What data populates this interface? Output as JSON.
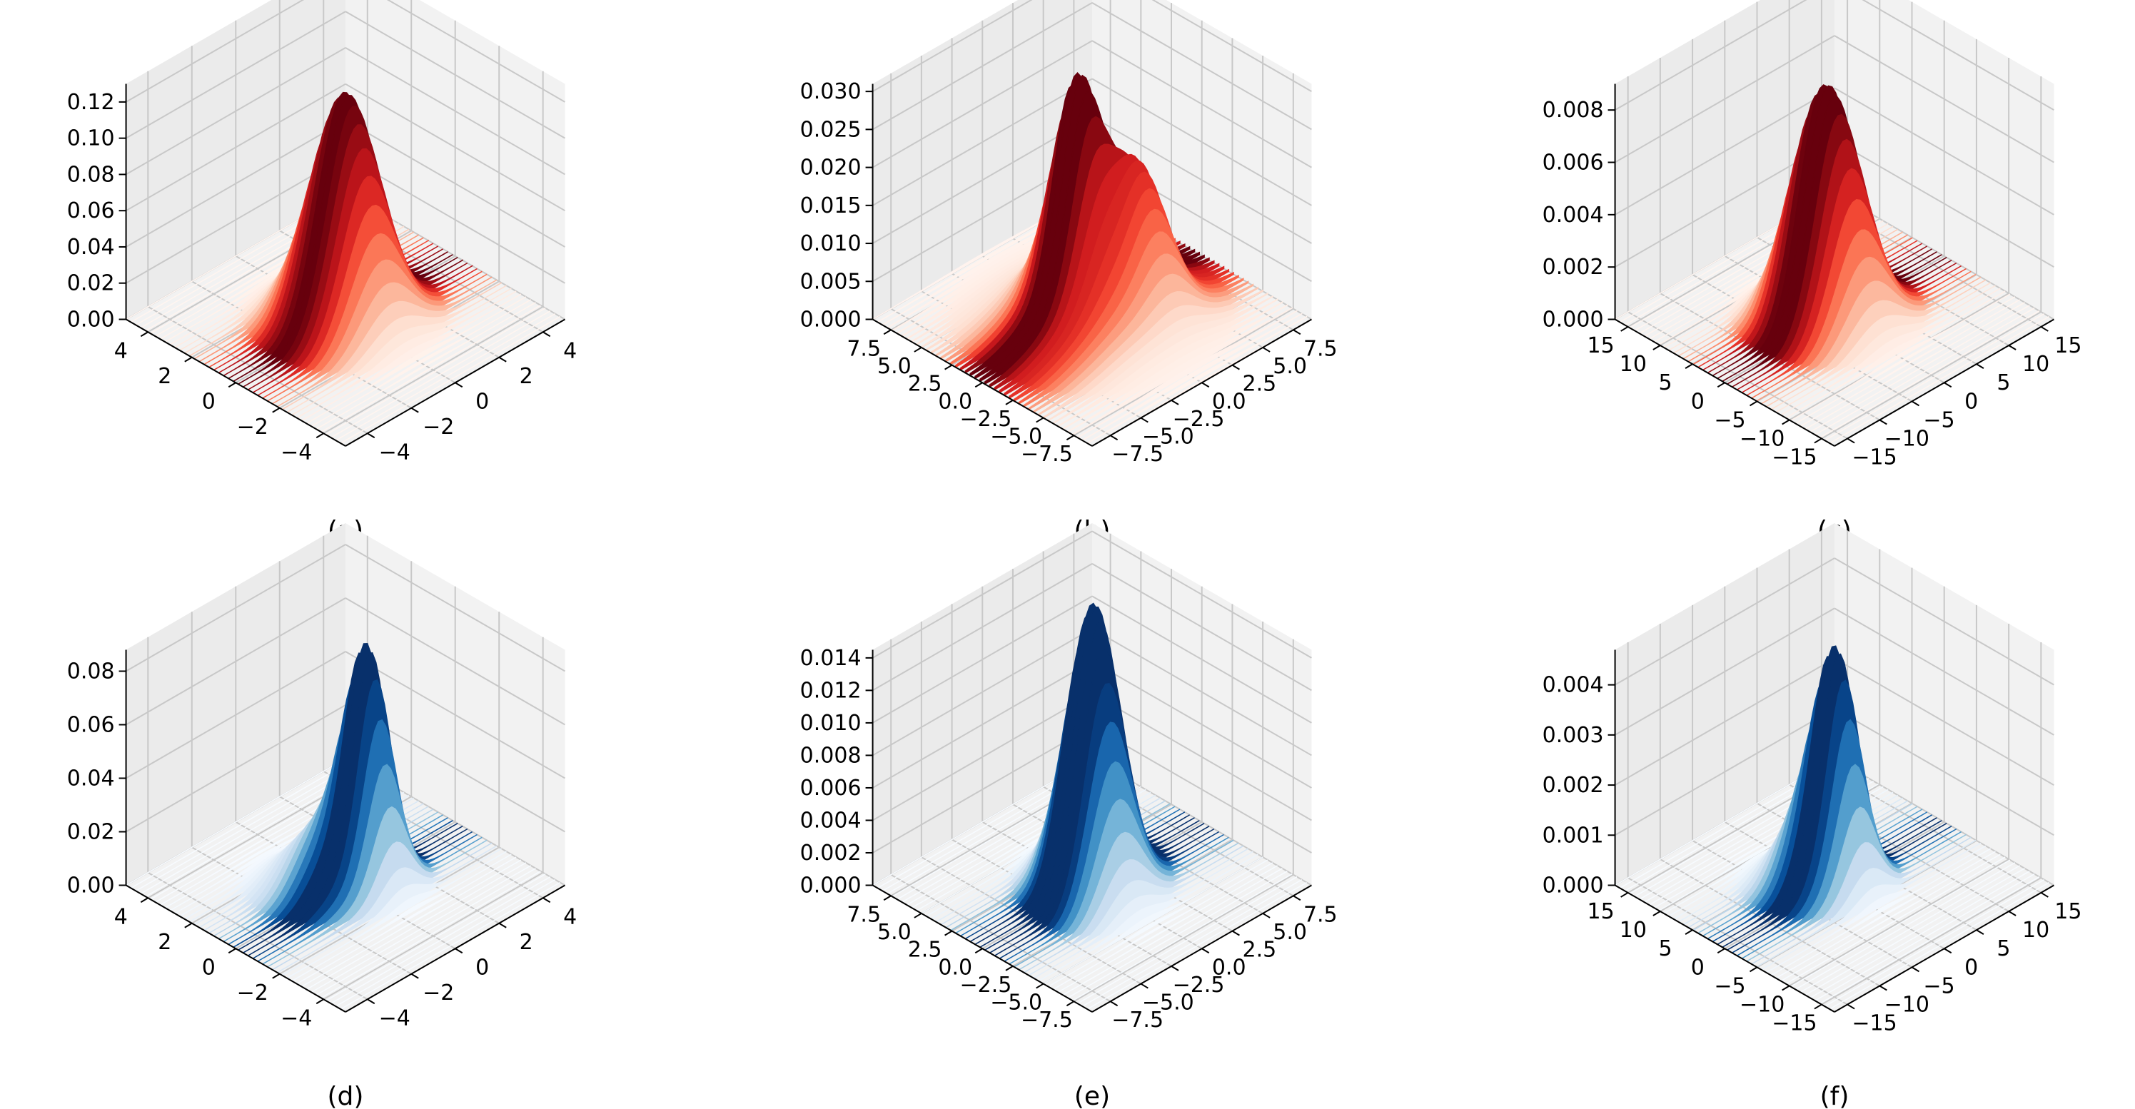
{
  "colors": {
    "red_peak": "#67000d",
    "red_base": "#fff5f0",
    "blue_peak": "#08306b",
    "blue_base": "#f7fbff"
  },
  "chart_data": [
    {
      "type": "surface3d",
      "caption": "(a)",
      "colormap": "Reds",
      "x_ticks": [
        "4",
        "2",
        "0",
        "−2",
        "−4"
      ],
      "y_ticks": [
        "−4",
        "−2",
        "0",
        "2",
        "4"
      ],
      "z_ticks": [
        "0.00",
        "0.02",
        "0.04",
        "0.06",
        "0.08",
        "0.10",
        "0.12"
      ],
      "xlim": [
        -5,
        5
      ],
      "ylim": [
        -5,
        5
      ],
      "zlim": [
        0,
        0.13
      ],
      "peaks": [
        {
          "x": 0,
          "y": 0,
          "height": 0.125,
          "sigma_x": 1.15,
          "sigma_y": 1.15
        }
      ]
    },
    {
      "type": "surface3d",
      "caption": "(b)",
      "colormap": "Reds",
      "x_ticks": [
        "7.5",
        "5.0",
        "2.5",
        "0.0",
        "−2.5",
        "−5.0",
        "−7.5"
      ],
      "y_ticks": [
        "−7.5",
        "−5.0",
        "−2.5",
        "0.0",
        "2.5",
        "5.0",
        "7.5"
      ],
      "z_ticks": [
        "0.000",
        "0.005",
        "0.010",
        "0.015",
        "0.020",
        "0.025",
        "0.030"
      ],
      "xlim": [
        -9,
        9
      ],
      "ylim": [
        -9,
        9
      ],
      "zlim": [
        0,
        0.031
      ],
      "peaks": [
        {
          "x": 0.5,
          "y": -0.8,
          "height": 0.024,
          "sigma_x": 1.4,
          "sigma_y": 1.4
        },
        {
          "x": -1.8,
          "y": 2.2,
          "height": 0.014,
          "sigma_x": 1.6,
          "sigma_y": 1.6
        },
        {
          "x": 0,
          "y": 0,
          "height": 0.008,
          "sigma_x": 3.5,
          "sigma_y": 3.5
        }
      ]
    },
    {
      "type": "surface3d",
      "caption": "(c)",
      "colormap": "Reds",
      "x_ticks": [
        "15",
        "10",
        "5",
        "0",
        "−5",
        "−10",
        "−15"
      ],
      "y_ticks": [
        "−15",
        "−10",
        "−5",
        "0",
        "5",
        "10",
        "15"
      ],
      "z_ticks": [
        "0.000",
        "0.002",
        "0.004",
        "0.006",
        "0.008"
      ],
      "xlim": [
        -17,
        17
      ],
      "ylim": [
        -17,
        17
      ],
      "zlim": [
        0,
        0.009
      ],
      "peaks": [
        {
          "x": 0,
          "y": 0,
          "height": 0.0075,
          "sigma_x": 3.6,
          "sigma_y": 3.6
        },
        {
          "x": 2.5,
          "y": -2.5,
          "height": 0.0025,
          "sigma_x": 3.0,
          "sigma_y": 3.0
        }
      ]
    },
    {
      "type": "surface3d",
      "caption": "(d)",
      "colormap": "Blues",
      "x_ticks": [
        "4",
        "2",
        "0",
        "−2",
        "−4"
      ],
      "y_ticks": [
        "−4",
        "−2",
        "0",
        "2",
        "4"
      ],
      "z_ticks": [
        "0.00",
        "0.02",
        "0.04",
        "0.06",
        "0.08"
      ],
      "xlim": [
        -5,
        5
      ],
      "ylim": [
        -5,
        5
      ],
      "zlim": [
        0,
        0.088
      ],
      "peaks": [
        {
          "x": -0.4,
          "y": 0.6,
          "height": 0.085,
          "sigma_x": 0.75,
          "sigma_y": 0.75
        },
        {
          "x": 0.6,
          "y": -0.8,
          "height": 0.02,
          "sigma_x": 1.0,
          "sigma_y": 1.0
        }
      ]
    },
    {
      "type": "surface3d",
      "caption": "(e)",
      "colormap": "Blues",
      "x_ticks": [
        "7.5",
        "5.0",
        "2.5",
        "0.0",
        "−2.5",
        "−5.0",
        "−7.5"
      ],
      "y_ticks": [
        "−7.5",
        "−5.0",
        "−2.5",
        "0.0",
        "2.5",
        "5.0",
        "7.5"
      ],
      "z_ticks": [
        "0.000",
        "0.002",
        "0.004",
        "0.006",
        "0.008",
        "0.010",
        "0.012",
        "0.014"
      ],
      "xlim": [
        -9,
        9
      ],
      "ylim": [
        -9,
        9
      ],
      "zlim": [
        0,
        0.0145
      ],
      "peaks": [
        {
          "x": 0.5,
          "y": 0.6,
          "height": 0.0125,
          "sigma_x": 1.6,
          "sigma_y": 1.6
        },
        {
          "x": -1.0,
          "y": -0.8,
          "height": 0.0085,
          "sigma_x": 1.6,
          "sigma_y": 1.6
        }
      ]
    },
    {
      "type": "surface3d",
      "caption": "(f)",
      "colormap": "Blues",
      "x_ticks": [
        "15",
        "10",
        "5",
        "0",
        "−5",
        "−10",
        "−15"
      ],
      "y_ticks": [
        "−15",
        "−10",
        "−5",
        "0",
        "5",
        "10",
        "15"
      ],
      "z_ticks": [
        "0.000",
        "0.001",
        "0.002",
        "0.003",
        "0.004"
      ],
      "xlim": [
        -17,
        17
      ],
      "ylim": [
        -17,
        17
      ],
      "zlim": [
        0,
        0.0047
      ],
      "peaks": [
        {
          "x": 0,
          "y": 0.5,
          "height": 0.0042,
          "sigma_x": 2.5,
          "sigma_y": 2.5
        },
        {
          "x": 2.5,
          "y": -2.5,
          "height": 0.0012,
          "sigma_x": 3.0,
          "sigma_y": 3.0
        }
      ]
    }
  ]
}
